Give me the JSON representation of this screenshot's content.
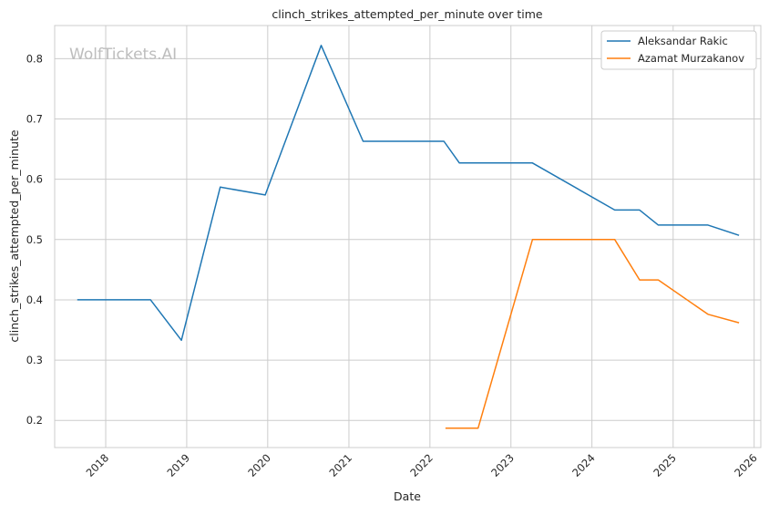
{
  "chart_data": {
    "type": "line",
    "title": "clinch_strikes_attempted_per_minute over time",
    "xlabel": "Date",
    "ylabel": "clinch_strikes_attempted_per_minute",
    "watermark": "WolfTickets.AI",
    "x_type": "date",
    "xlim": [
      "2017-05-16",
      "2026-01-31"
    ],
    "ylim": [
      0.155,
      0.855
    ],
    "x_ticks": [
      "2018",
      "2019",
      "2020",
      "2021",
      "2022",
      "2023",
      "2024",
      "2025",
      "2026"
    ],
    "y_ticks": [
      "0.2",
      "0.3",
      "0.4",
      "0.5",
      "0.6",
      "0.7",
      "0.8"
    ],
    "grid": true,
    "legend_position": "top-right",
    "series": [
      {
        "name": "Aleksandar Rakic",
        "color": "#1f77b4",
        "x": [
          "2017-08-26",
          "2018-07-22",
          "2018-12-08",
          "2019-06-01",
          "2019-12-21",
          "2020-08-29",
          "2021-03-06",
          "2022-03-05",
          "2022-05-14",
          "2023-04-08",
          "2024-04-13",
          "2024-08-03",
          "2024-10-26",
          "2025-06-07",
          "2025-10-25"
        ],
        "y": [
          0.4,
          0.4,
          0.333,
          0.587,
          0.574,
          0.822,
          0.663,
          0.663,
          0.627,
          0.627,
          0.549,
          0.549,
          0.524,
          0.524,
          0.507
        ]
      },
      {
        "name": "Azamat Murzakanov",
        "color": "#ff7f0e",
        "x": [
          "2022-03-12",
          "2022-08-06",
          "2023-04-08",
          "2024-04-13",
          "2024-08-03",
          "2024-10-26",
          "2025-06-07",
          "2025-10-25"
        ],
        "y": [
          0.187,
          0.187,
          0.5,
          0.5,
          0.433,
          0.433,
          0.376,
          0.362
        ]
      }
    ]
  }
}
